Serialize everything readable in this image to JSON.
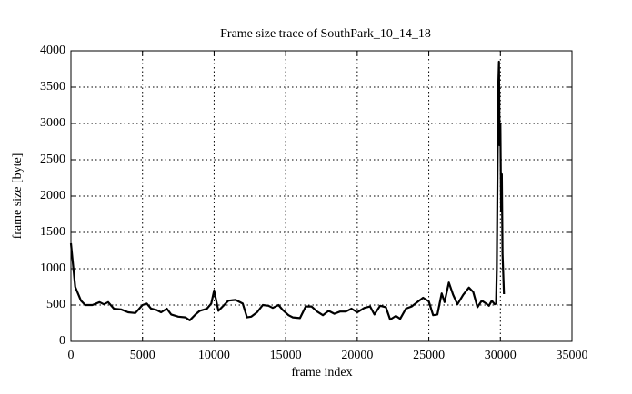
{
  "chart_data": {
    "type": "line",
    "title": "Frame size trace of SouthPark_10_14_18",
    "xlabel": "frame index",
    "ylabel": "frame size [byte]",
    "x": [
      0,
      300,
      700,
      1000,
      1500,
      2000,
      2300,
      2600,
      3000,
      3500,
      4000,
      4500,
      5000,
      5300,
      5600,
      6000,
      6300,
      6700,
      7000,
      7500,
      8000,
      8300,
      8700,
      9000,
      9500,
      9800,
      10000,
      10300,
      10700,
      11000,
      11500,
      12000,
      12300,
      12600,
      13000,
      13400,
      13800,
      14100,
      14500,
      14800,
      15200,
      15500,
      16000,
      16400,
      16800,
      17200,
      17600,
      18000,
      18400,
      18800,
      19200,
      19600,
      20000,
      20500,
      20900,
      21200,
      21600,
      22000,
      22300,
      22700,
      23000,
      23400,
      23800,
      24200,
      24600,
      25000,
      25300,
      25600,
      25900,
      26100,
      26400,
      26700,
      27000,
      27400,
      27800,
      28100,
      28400,
      28700,
      29000,
      29200,
      29400,
      29600,
      29700,
      29750,
      29800,
      29850,
      29900,
      29950,
      30000,
      30050,
      30100,
      30150,
      30250
    ],
    "series": [
      {
        "name": "frame size",
        "color": "#000000",
        "values": [
          1350,
          750,
          560,
          500,
          500,
          540,
          510,
          540,
          450,
          440,
          400,
          390,
          500,
          520,
          450,
          430,
          400,
          450,
          370,
          340,
          330,
          290,
          370,
          420,
          450,
          520,
          700,
          420,
          500,
          560,
          570,
          520,
          330,
          340,
          400,
          500,
          490,
          460,
          500,
          430,
          360,
          330,
          320,
          480,
          480,
          410,
          360,
          420,
          380,
          410,
          410,
          450,
          400,
          460,
          480,
          370,
          490,
          470,
          300,
          350,
          310,
          450,
          480,
          540,
          600,
          550,
          360,
          370,
          660,
          540,
          810,
          640,
          510,
          640,
          740,
          680,
          470,
          560,
          520,
          490,
          560,
          510,
          520,
          1000,
          2300,
          3500,
          3850,
          2700,
          3000,
          1800,
          2300,
          1200,
          650
        ]
      }
    ],
    "xlim": [
      0,
      35000
    ],
    "ylim": [
      0,
      4000
    ],
    "xticks": [
      0,
      5000,
      10000,
      15000,
      20000,
      25000,
      30000,
      35000
    ],
    "yticks": [
      0,
      500,
      1000,
      1500,
      2000,
      2500,
      3000,
      3500,
      4000
    ],
    "grid": true
  }
}
